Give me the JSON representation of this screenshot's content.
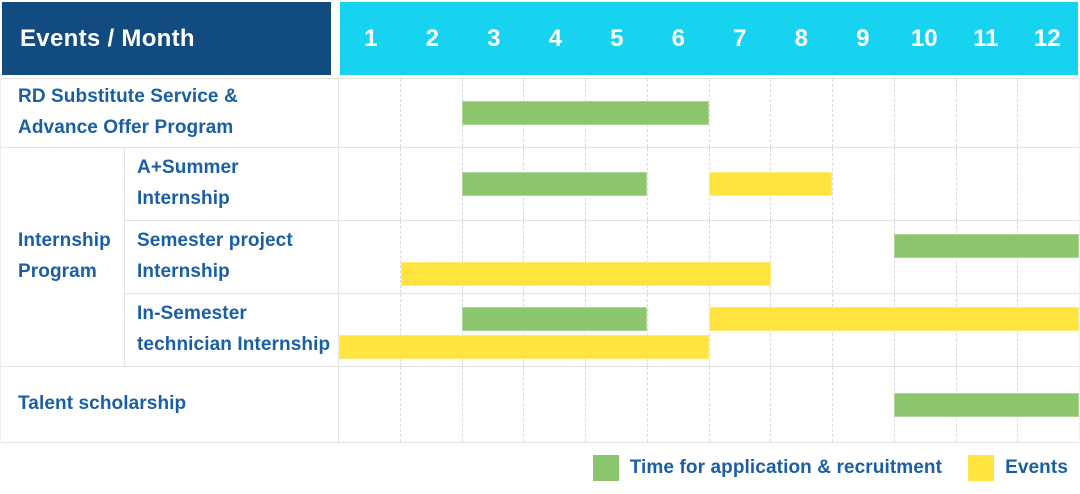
{
  "header": {
    "title": "Events / Month",
    "months": [
      "1",
      "2",
      "3",
      "4",
      "5",
      "6",
      "7",
      "8",
      "9",
      "10",
      "11",
      "12"
    ]
  },
  "colors": {
    "header_bg": "#124B7F",
    "month_header_bg": "#18D3EF",
    "label_text": "#1A5FA5",
    "application_bar": "#8BC56C",
    "event_bar": "#FFE33E",
    "grid_line": "#DADADA",
    "row_border": "#E3E3E3"
  },
  "legend": {
    "items": [
      {
        "type": "application",
        "label": "Time for application & recruitment"
      },
      {
        "type": "event",
        "label": "Events"
      }
    ]
  },
  "chart_data": {
    "type": "gantt",
    "title": "Events / Month",
    "x": {
      "label": "Month",
      "ticks": [
        1,
        2,
        3,
        4,
        5,
        6,
        7,
        8,
        9,
        10,
        11,
        12
      ],
      "range": [
        1,
        12
      ]
    },
    "legend": {
      "application": "Time for application & recruitment",
      "event": "Events"
    },
    "group_label": "Internship Program",
    "group_label_lines": [
      "Internship",
      "Program"
    ],
    "tasks": [
      {
        "group": null,
        "name": "RD Substitute Service & Advance Offer Program",
        "label_lines": [
          "RD Substitute Service &",
          "Advance Offer Program"
        ],
        "bars": [
          {
            "type": "application",
            "start": 3,
            "end": 6,
            "lane": "middle"
          }
        ]
      },
      {
        "group": "Internship Program",
        "name": "A+Summer Internship",
        "label_lines": [
          "A+Summer",
          "Internship"
        ],
        "bars": [
          {
            "type": "application",
            "start": 3,
            "end": 5,
            "lane": "middle"
          },
          {
            "type": "event",
            "start": 7,
            "end": 8,
            "lane": "middle"
          }
        ]
      },
      {
        "group": "Internship Program",
        "name": "Semester project Internship",
        "label_lines": [
          "Semester project",
          "Internship"
        ],
        "bars": [
          {
            "type": "application",
            "start": 10,
            "end": 12,
            "lane": "top"
          },
          {
            "type": "event",
            "start": 2,
            "end": 7,
            "lane": "bottom"
          }
        ]
      },
      {
        "group": "Internship Program",
        "name": "In-Semester technician Internship",
        "label_lines": [
          "In-Semester",
          "technician Internship"
        ],
        "bars": [
          {
            "type": "application",
            "start": 3,
            "end": 5,
            "lane": "top"
          },
          {
            "type": "event",
            "start": 7,
            "end": 12,
            "lane": "top"
          },
          {
            "type": "event",
            "start": 1,
            "end": 6,
            "lane": "bottom"
          }
        ]
      },
      {
        "group": null,
        "name": "Talent scholarship",
        "label_lines": [
          "Talent scholarship"
        ],
        "bars": [
          {
            "type": "application",
            "start": 10,
            "end": 12,
            "lane": "middle"
          }
        ]
      }
    ]
  }
}
